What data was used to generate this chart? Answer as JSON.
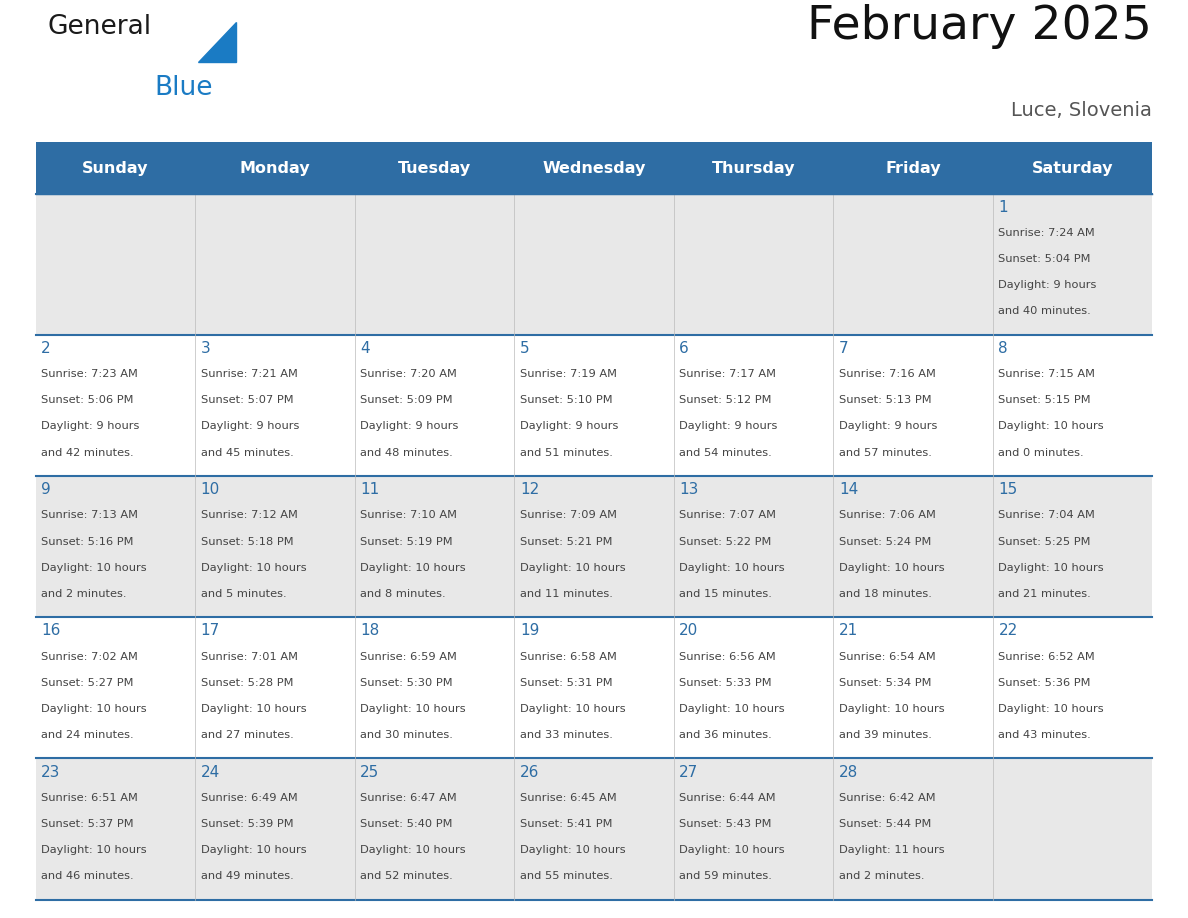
{
  "title": "February 2025",
  "subtitle": "Luce, Slovenia",
  "days_of_week": [
    "Sunday",
    "Monday",
    "Tuesday",
    "Wednesday",
    "Thursday",
    "Friday",
    "Saturday"
  ],
  "header_bg": "#2E6DA4",
  "header_text_color": "#FFFFFF",
  "row_bg": [
    "#E8E8E8",
    "#FFFFFF",
    "#E8E8E8",
    "#FFFFFF",
    "#E8E8E8"
  ],
  "day_num_color": "#2E6DA4",
  "text_color": "#444444",
  "border_color": "#2E6DA4",
  "logo_general_color": "#1a1a1a",
  "logo_blue_color": "#1a7BC4",
  "logo_triangle_color": "#1a7BC4",
  "calendar_data": [
    [
      null,
      null,
      null,
      null,
      null,
      null,
      {
        "day": "1",
        "sunrise": "Sunrise: 7:24 AM",
        "sunset": "Sunset: 5:04 PM",
        "daylight": "Daylight: 9 hours",
        "daylight2": "and 40 minutes."
      }
    ],
    [
      {
        "day": "2",
        "sunrise": "Sunrise: 7:23 AM",
        "sunset": "Sunset: 5:06 PM",
        "daylight": "Daylight: 9 hours",
        "daylight2": "and 42 minutes."
      },
      {
        "day": "3",
        "sunrise": "Sunrise: 7:21 AM",
        "sunset": "Sunset: 5:07 PM",
        "daylight": "Daylight: 9 hours",
        "daylight2": "and 45 minutes."
      },
      {
        "day": "4",
        "sunrise": "Sunrise: 7:20 AM",
        "sunset": "Sunset: 5:09 PM",
        "daylight": "Daylight: 9 hours",
        "daylight2": "and 48 minutes."
      },
      {
        "day": "5",
        "sunrise": "Sunrise: 7:19 AM",
        "sunset": "Sunset: 5:10 PM",
        "daylight": "Daylight: 9 hours",
        "daylight2": "and 51 minutes."
      },
      {
        "day": "6",
        "sunrise": "Sunrise: 7:17 AM",
        "sunset": "Sunset: 5:12 PM",
        "daylight": "Daylight: 9 hours",
        "daylight2": "and 54 minutes."
      },
      {
        "day": "7",
        "sunrise": "Sunrise: 7:16 AM",
        "sunset": "Sunset: 5:13 PM",
        "daylight": "Daylight: 9 hours",
        "daylight2": "and 57 minutes."
      },
      {
        "day": "8",
        "sunrise": "Sunrise: 7:15 AM",
        "sunset": "Sunset: 5:15 PM",
        "daylight": "Daylight: 10 hours",
        "daylight2": "and 0 minutes."
      }
    ],
    [
      {
        "day": "9",
        "sunrise": "Sunrise: 7:13 AM",
        "sunset": "Sunset: 5:16 PM",
        "daylight": "Daylight: 10 hours",
        "daylight2": "and 2 minutes."
      },
      {
        "day": "10",
        "sunrise": "Sunrise: 7:12 AM",
        "sunset": "Sunset: 5:18 PM",
        "daylight": "Daylight: 10 hours",
        "daylight2": "and 5 minutes."
      },
      {
        "day": "11",
        "sunrise": "Sunrise: 7:10 AM",
        "sunset": "Sunset: 5:19 PM",
        "daylight": "Daylight: 10 hours",
        "daylight2": "and 8 minutes."
      },
      {
        "day": "12",
        "sunrise": "Sunrise: 7:09 AM",
        "sunset": "Sunset: 5:21 PM",
        "daylight": "Daylight: 10 hours",
        "daylight2": "and 11 minutes."
      },
      {
        "day": "13",
        "sunrise": "Sunrise: 7:07 AM",
        "sunset": "Sunset: 5:22 PM",
        "daylight": "Daylight: 10 hours",
        "daylight2": "and 15 minutes."
      },
      {
        "day": "14",
        "sunrise": "Sunrise: 7:06 AM",
        "sunset": "Sunset: 5:24 PM",
        "daylight": "Daylight: 10 hours",
        "daylight2": "and 18 minutes."
      },
      {
        "day": "15",
        "sunrise": "Sunrise: 7:04 AM",
        "sunset": "Sunset: 5:25 PM",
        "daylight": "Daylight: 10 hours",
        "daylight2": "and 21 minutes."
      }
    ],
    [
      {
        "day": "16",
        "sunrise": "Sunrise: 7:02 AM",
        "sunset": "Sunset: 5:27 PM",
        "daylight": "Daylight: 10 hours",
        "daylight2": "and 24 minutes."
      },
      {
        "day": "17",
        "sunrise": "Sunrise: 7:01 AM",
        "sunset": "Sunset: 5:28 PM",
        "daylight": "Daylight: 10 hours",
        "daylight2": "and 27 minutes."
      },
      {
        "day": "18",
        "sunrise": "Sunrise: 6:59 AM",
        "sunset": "Sunset: 5:30 PM",
        "daylight": "Daylight: 10 hours",
        "daylight2": "and 30 minutes."
      },
      {
        "day": "19",
        "sunrise": "Sunrise: 6:58 AM",
        "sunset": "Sunset: 5:31 PM",
        "daylight": "Daylight: 10 hours",
        "daylight2": "and 33 minutes."
      },
      {
        "day": "20",
        "sunrise": "Sunrise: 6:56 AM",
        "sunset": "Sunset: 5:33 PM",
        "daylight": "Daylight: 10 hours",
        "daylight2": "and 36 minutes."
      },
      {
        "day": "21",
        "sunrise": "Sunrise: 6:54 AM",
        "sunset": "Sunset: 5:34 PM",
        "daylight": "Daylight: 10 hours",
        "daylight2": "and 39 minutes."
      },
      {
        "day": "22",
        "sunrise": "Sunrise: 6:52 AM",
        "sunset": "Sunset: 5:36 PM",
        "daylight": "Daylight: 10 hours",
        "daylight2": "and 43 minutes."
      }
    ],
    [
      {
        "day": "23",
        "sunrise": "Sunrise: 6:51 AM",
        "sunset": "Sunset: 5:37 PM",
        "daylight": "Daylight: 10 hours",
        "daylight2": "and 46 minutes."
      },
      {
        "day": "24",
        "sunrise": "Sunrise: 6:49 AM",
        "sunset": "Sunset: 5:39 PM",
        "daylight": "Daylight: 10 hours",
        "daylight2": "and 49 minutes."
      },
      {
        "day": "25",
        "sunrise": "Sunrise: 6:47 AM",
        "sunset": "Sunset: 5:40 PM",
        "daylight": "Daylight: 10 hours",
        "daylight2": "and 52 minutes."
      },
      {
        "day": "26",
        "sunrise": "Sunrise: 6:45 AM",
        "sunset": "Sunset: 5:41 PM",
        "daylight": "Daylight: 10 hours",
        "daylight2": "and 55 minutes."
      },
      {
        "day": "27",
        "sunrise": "Sunrise: 6:44 AM",
        "sunset": "Sunset: 5:43 PM",
        "daylight": "Daylight: 10 hours",
        "daylight2": "and 59 minutes."
      },
      {
        "day": "28",
        "sunrise": "Sunrise: 6:42 AM",
        "sunset": "Sunset: 5:44 PM",
        "daylight": "Daylight: 11 hours",
        "daylight2": "and 2 minutes."
      },
      null
    ]
  ]
}
